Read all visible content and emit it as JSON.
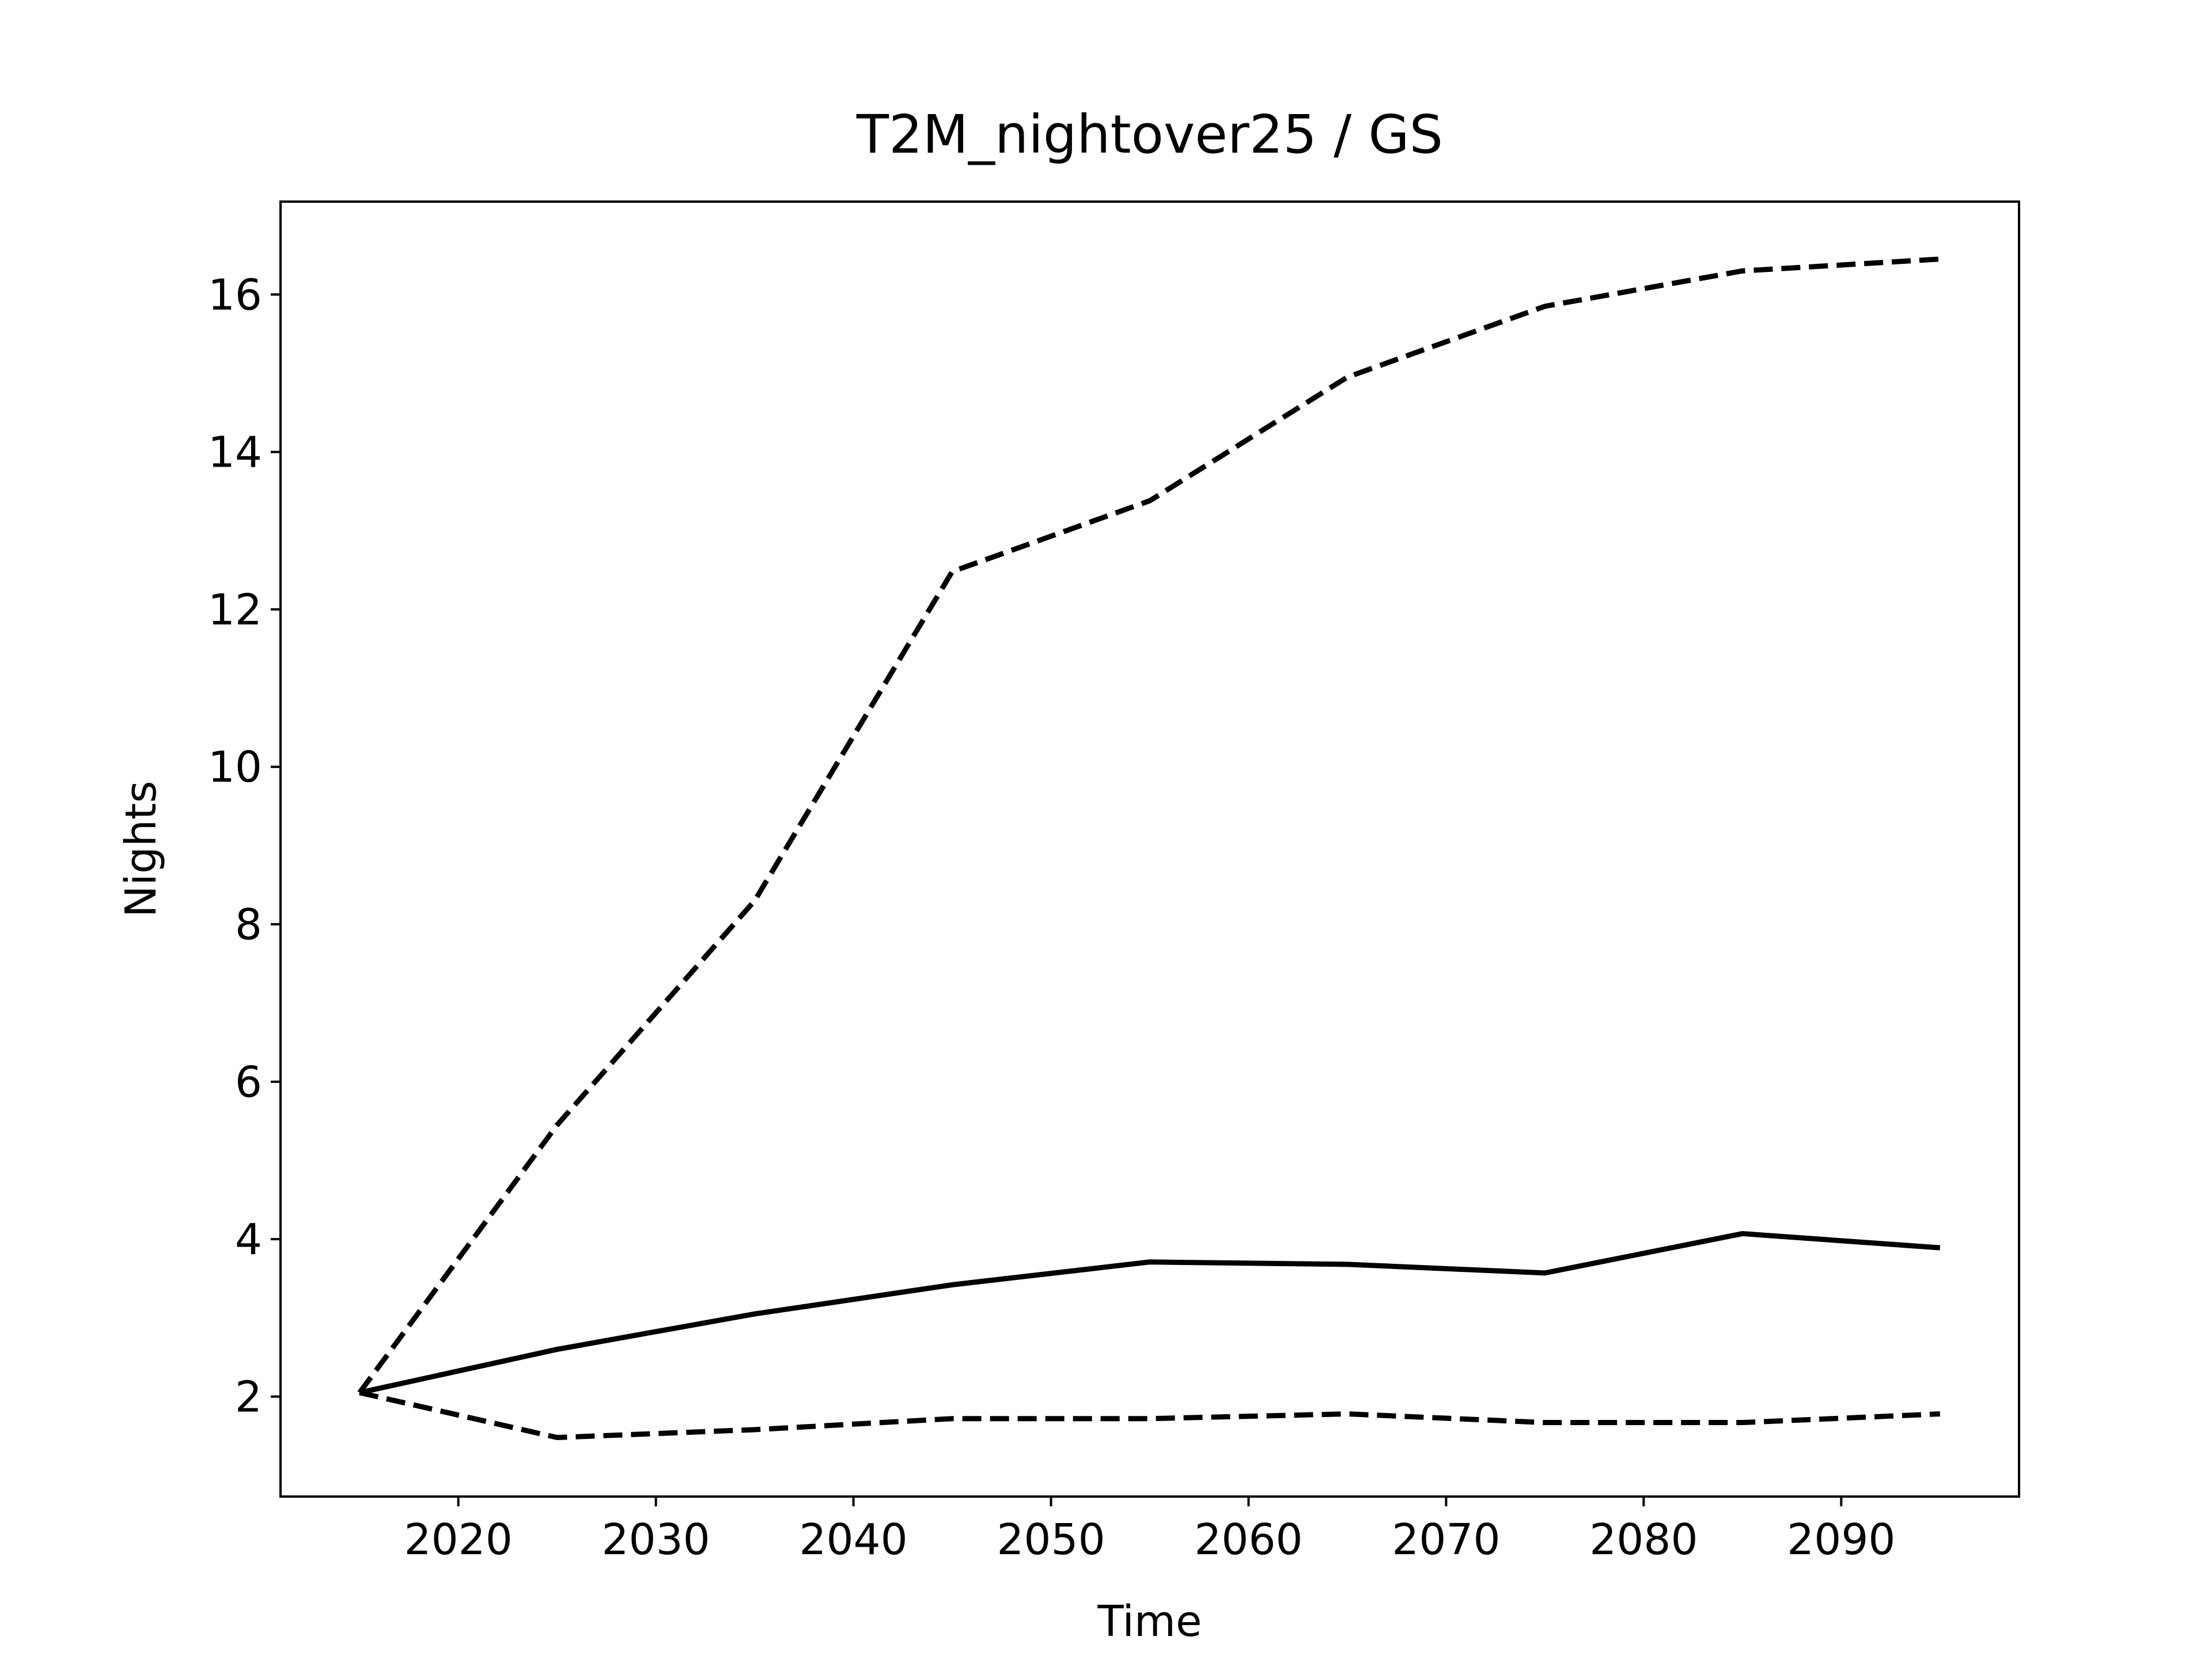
{
  "chart_data": {
    "type": "line",
    "title": "T2M_nightover25 / GS",
    "xlabel": "Time",
    "ylabel": "Nights",
    "x": [
      2015,
      2025,
      2035,
      2045,
      2055,
      2065,
      2075,
      2085,
      2095
    ],
    "series": [
      {
        "color": "#000000",
        "linestyle": "solid",
        "values": [
          2.05,
          2.6,
          3.05,
          3.42,
          3.71,
          3.68,
          3.57,
          4.07,
          3.89
        ]
      },
      {
        "color": "#000000",
        "linestyle": "dashed",
        "values": [
          2.05,
          5.45,
          8.3,
          12.48,
          13.38,
          14.95,
          15.85,
          16.3,
          16.45
        ]
      },
      {
        "color": "#000000",
        "linestyle": "dashed",
        "values": [
          2.05,
          1.48,
          1.58,
          1.72,
          1.72,
          1.78,
          1.67,
          1.67,
          1.78
        ]
      }
    ],
    "xlim": [
      2011,
      2099
    ],
    "xticks": [
      2020,
      2030,
      2040,
      2050,
      2060,
      2070,
      2080,
      2090
    ],
    "ylim": [
      0.73,
      17.18
    ],
    "yticks": [
      2,
      4,
      6,
      8,
      10,
      12,
      14,
      16
    ],
    "grid": false
  }
}
